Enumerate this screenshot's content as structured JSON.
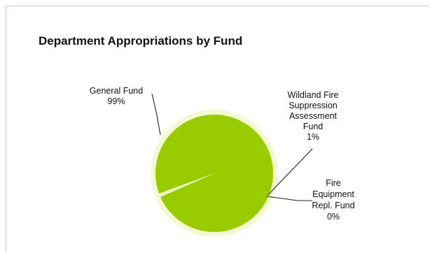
{
  "chart_data": {
    "type": "pie",
    "title": "Department Appropriations by Fund",
    "slices": [
      {
        "label_lines": [
          "General Fund",
          "99%"
        ],
        "value": 99,
        "color": "#99cc00"
      },
      {
        "label_lines": [
          "Wildland Fire",
          "Suppression",
          "Assessment",
          "Fund",
          "1%"
        ],
        "value": 1,
        "color": "#eef7c2"
      },
      {
        "label_lines": [
          "Fire",
          "Equipment",
          "Repl. Fund",
          "0%"
        ],
        "value": 0,
        "color": "#eef7c2"
      }
    ],
    "legend": "none"
  },
  "colors": {
    "ring": "#f3f9d0",
    "leader": "#222222"
  }
}
